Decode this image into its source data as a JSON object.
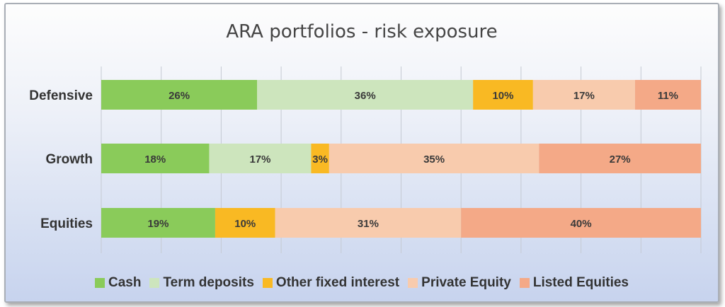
{
  "chart_data": {
    "type": "bar",
    "orientation": "horizontal",
    "stacked": true,
    "title": "ARA portfolios  - risk exposure",
    "categories": [
      "Defensive",
      "Growth",
      "Equities"
    ],
    "series": [
      {
        "name": "Cash",
        "color": "#8acb5a",
        "values": [
          26,
          18,
          19
        ],
        "labels": [
          "26%",
          "18%",
          "19%"
        ]
      },
      {
        "name": "Term deposits",
        "color": "#cde5bd",
        "values": [
          36,
          17,
          0
        ],
        "labels": [
          "36%",
          "17%",
          ""
        ]
      },
      {
        "name": "Other fixed interest",
        "color": "#f9b923",
        "values": [
          10,
          3,
          10
        ],
        "labels": [
          "10%",
          "3%",
          "10%"
        ]
      },
      {
        "name": "Private Equity",
        "color": "#f8cbad",
        "values": [
          17,
          35,
          31
        ],
        "labels": [
          "17%",
          "35%",
          "31%"
        ]
      },
      {
        "name": "Listed Equities",
        "color": "#f4a987",
        "values": [
          11,
          27,
          40
        ],
        "labels": [
          "11%",
          "27%",
          "40%"
        ]
      }
    ],
    "xlim": [
      0,
      100
    ],
    "grid": true,
    "legend_position": "bottom"
  }
}
